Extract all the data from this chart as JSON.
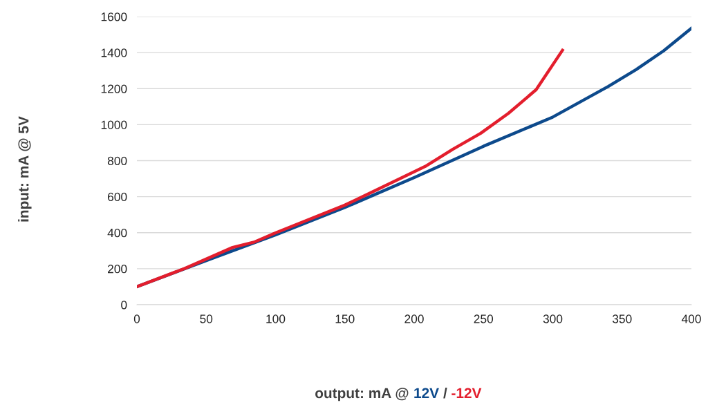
{
  "chart_data": {
    "type": "line",
    "xlabel": "output: mA @",
    "annotations": [
      "/"
    ],
    "ylabel": "input: mA @ 5V",
    "xlim": [
      0,
      400
    ],
    "xticks": [
      0,
      50,
      100,
      150,
      200,
      250,
      300,
      350,
      400
    ],
    "ylim": [
      0,
      1600
    ],
    "yticks": [
      0,
      200,
      400,
      600,
      800,
      1000,
      1200,
      1400,
      1600
    ],
    "grid": "y",
    "legend": false,
    "marker": "none",
    "line_style": "solid",
    "series": [
      {
        "name": "12V",
        "color": "#0d4a8c",
        "x": [
          0,
          50,
          100,
          150,
          200,
          250,
          300,
          340,
          360,
          380,
          400
        ],
        "values": [
          100,
          245,
          388,
          540,
          706,
          880,
          1042,
          1212,
          1305,
          1410,
          1535
        ]
      },
      {
        "name": "-12V",
        "color": "#e31e2d",
        "x": [
          0,
          35,
          69,
          85,
          100,
          150,
          208,
          228,
          248,
          268,
          288,
          307
        ],
        "values": [
          100,
          203,
          318,
          349,
          399,
          553,
          768,
          864,
          952,
          1063,
          1194,
          1413
        ]
      }
    ]
  }
}
